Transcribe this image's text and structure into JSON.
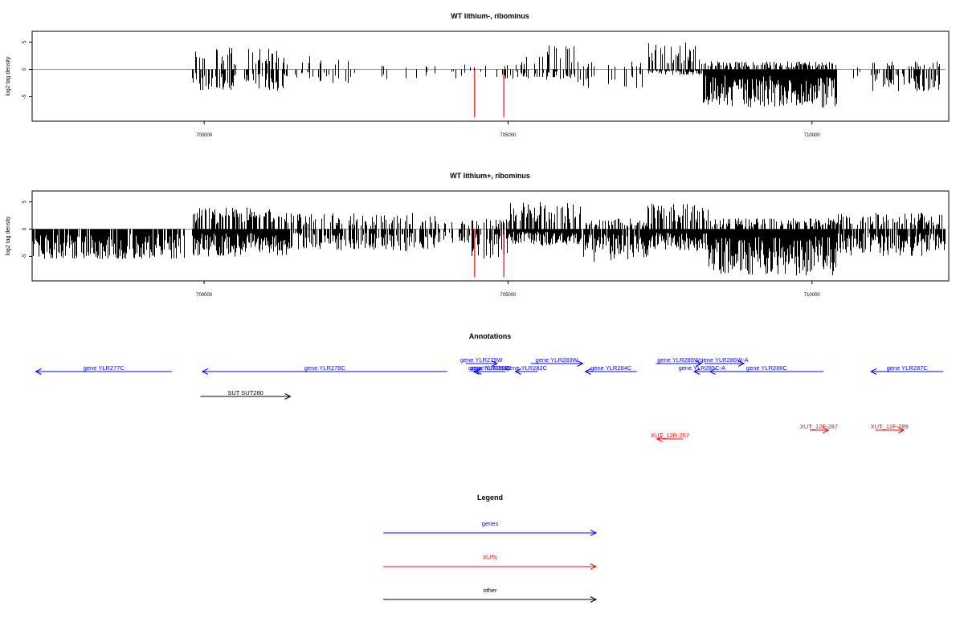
{
  "colors": {
    "gene": "#0000ff",
    "xut": "#ff0000",
    "other": "#000000",
    "highlight": "#ff0000"
  },
  "chart_data": [
    {
      "type": "bar",
      "title": "WT lithium-, ribominus",
      "ylabel": "log2 tag density",
      "xlim": [
        697170,
        712250
      ],
      "ylim": [
        -9.5,
        7
      ],
      "xticks": [
        700000,
        705000,
        710000
      ],
      "xtick_labels": [
        "700000",
        "705000",
        "710000"
      ],
      "yticks": [
        5,
        0,
        -5
      ],
      "ytick_labels": [
        "5",
        "0",
        "-5"
      ],
      "highlight_lines": [
        {
          "x": 704450,
          "y": -8.8
        },
        {
          "x": 704930,
          "y": -8.8
        }
      ],
      "segments": [
        {
          "start": 697200,
          "end": 698900,
          "density": 0.0,
          "hi": 0,
          "lo": -4
        },
        {
          "start": 699100,
          "end": 699800,
          "density": 0.0,
          "hi": 0,
          "lo": -3
        },
        {
          "start": 699800,
          "end": 701300,
          "density": 0.55,
          "hi": 4,
          "lo": -4
        },
        {
          "start": 701300,
          "end": 702500,
          "density": 0.25,
          "hi": 2.5,
          "lo": -2.5
        },
        {
          "start": 702500,
          "end": 704300,
          "density": 0.1,
          "hi": 1,
          "lo": -2
        },
        {
          "start": 704300,
          "end": 704900,
          "density": 0.1,
          "hi": 1.5,
          "lo": -1.5
        },
        {
          "start": 704900,
          "end": 705500,
          "density": 0.35,
          "hi": 2.5,
          "lo": -2
        },
        {
          "start": 705500,
          "end": 706100,
          "density": 0.5,
          "hi": 4.5,
          "lo": -2
        },
        {
          "start": 706100,
          "end": 707200,
          "density": 0.2,
          "hi": 1.5,
          "lo": -3.5
        },
        {
          "start": 707300,
          "end": 708200,
          "density": 0.85,
          "hi": 5,
          "lo": -1
        },
        {
          "start": 708200,
          "end": 710400,
          "density": 1.0,
          "hi": 1.5,
          "lo": -7
        },
        {
          "start": 710400,
          "end": 711000,
          "density": 0.1,
          "hi": 1,
          "lo": -2
        },
        {
          "start": 711000,
          "end": 712100,
          "density": 0.6,
          "hi": 1.5,
          "lo": -4
        }
      ]
    },
    {
      "type": "bar",
      "title": "WT lithium+, ribominus",
      "ylabel": "log2 tag density",
      "xlim": [
        697170,
        712250
      ],
      "ylim": [
        -9.5,
        7
      ],
      "xticks": [
        700000,
        705000,
        710000
      ],
      "xtick_labels": [
        "700000",
        "705000",
        "710000"
      ],
      "yticks": [
        5,
        0,
        -5
      ],
      "ytick_labels": [
        "5",
        "0",
        "-5"
      ],
      "highlight_lines": [
        {
          "x": 704450,
          "y": -8.8
        },
        {
          "x": 704930,
          "y": -8.8
        }
      ],
      "segments": [
        {
          "start": 697170,
          "end": 699700,
          "density": 0.85,
          "hi": 0,
          "lo": -5.5
        },
        {
          "start": 699800,
          "end": 701400,
          "density": 1.0,
          "hi": 4,
          "lo": -5
        },
        {
          "start": 701400,
          "end": 703800,
          "density": 0.7,
          "hi": 3,
          "lo": -4
        },
        {
          "start": 703800,
          "end": 704400,
          "density": 0.3,
          "hi": 1.5,
          "lo": -2.5
        },
        {
          "start": 704400,
          "end": 705000,
          "density": 0.6,
          "hi": 2,
          "lo": -5.5
        },
        {
          "start": 705000,
          "end": 706200,
          "density": 1.0,
          "hi": 5.5,
          "lo": -3
        },
        {
          "start": 706200,
          "end": 707300,
          "density": 0.9,
          "hi": 2,
          "lo": -6
        },
        {
          "start": 707300,
          "end": 708300,
          "density": 1.0,
          "hi": 5,
          "lo": -4
        },
        {
          "start": 708300,
          "end": 710400,
          "density": 1.0,
          "hi": 2,
          "lo": -8.5
        },
        {
          "start": 710400,
          "end": 712200,
          "density": 0.9,
          "hi": 3,
          "lo": -5
        }
      ]
    }
  ],
  "annotations": {
    "title": "Annotations",
    "features": [
      {
        "label": "gene YLR277C",
        "type": "gene",
        "start": 697230,
        "end": 699470,
        "strand": "-",
        "row": 1
      },
      {
        "label": "gene YLR278C",
        "type": "gene",
        "start": 699970,
        "end": 704000,
        "strand": "-",
        "row": 1
      },
      {
        "label": "gene YLR279W",
        "type": "gene",
        "start": 704300,
        "end": 704820,
        "strand": "+",
        "row": 0
      },
      {
        "label": "gene YLR280C",
        "type": "gene",
        "start": 704430,
        "end": 704940,
        "strand": "-",
        "row": 1
      },
      {
        "label": "gene YLR281C",
        "type": "gene",
        "start": 704470,
        "end": 704960,
        "strand": "-",
        "row": 1
      },
      {
        "label": "gene YLR282C",
        "type": "gene",
        "start": 705120,
        "end": 705490,
        "strand": "-",
        "row": 1
      },
      {
        "label": "gene YLR283W",
        "type": "gene",
        "start": 705370,
        "end": 706230,
        "strand": "+",
        "row": 0
      },
      {
        "label": "gene YLR284C",
        "type": "gene",
        "start": 706270,
        "end": 707120,
        "strand": "-",
        "row": 1
      },
      {
        "label": "gene YLR285W",
        "type": "gene",
        "start": 707430,
        "end": 708180,
        "strand": "+",
        "row": 0
      },
      {
        "label": "gene YLR285C-A",
        "type": "gene",
        "start": 708060,
        "end": 708320,
        "strand": "-",
        "row": 1
      },
      {
        "label": "gene YLR286W-A",
        "type": "gene",
        "start": 708230,
        "end": 708880,
        "strand": "+",
        "row": 0
      },
      {
        "label": "gene YLR286C",
        "type": "gene",
        "start": 708320,
        "end": 710190,
        "strand": "-",
        "row": 1
      },
      {
        "label": "gene YLR287C",
        "type": "gene",
        "start": 710970,
        "end": 712160,
        "strand": "-",
        "row": 1
      },
      {
        "label": "SUT SUT280",
        "type": "other",
        "start": 699940,
        "end": 701420,
        "strand": "+",
        "row": 2
      },
      {
        "label": "XUT_12F-287",
        "type": "xut",
        "start": 709960,
        "end": 710270,
        "strand": "+",
        "row": 3
      },
      {
        "label": "XUT_12F-289",
        "type": "xut",
        "start": 711040,
        "end": 711510,
        "strand": "+",
        "row": 3
      },
      {
        "label": "XUT_12R-257",
        "type": "xut",
        "start": 707450,
        "end": 707880,
        "strand": "-",
        "row": 4
      }
    ]
  },
  "legend": {
    "title": "Legend",
    "items": [
      {
        "label": "genes",
        "type": "gene"
      },
      {
        "label": "XUTs",
        "type": "xut"
      },
      {
        "label": "other",
        "type": "other"
      }
    ]
  }
}
